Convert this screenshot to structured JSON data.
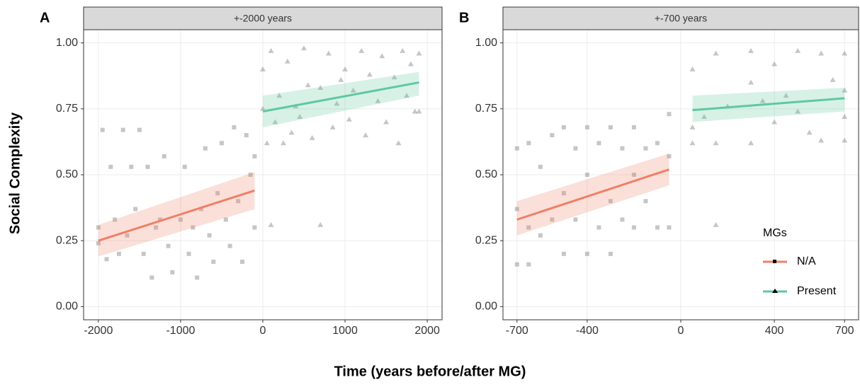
{
  "y_label": "Social Complexity",
  "x_label": "Time (years before/after MG)",
  "legend_title": "MGs",
  "chart_data": [
    {
      "type": "scatter",
      "panel_label": "A",
      "facet_title": "+-2000 years",
      "grid": true,
      "xlim": [
        -2180,
        2180
      ],
      "xticks": [
        -2000,
        -1000,
        0,
        1000,
        2000
      ],
      "ylim": [
        -0.05,
        1.05
      ],
      "yticks": [
        {
          "value": 0,
          "label": "0.00"
        },
        {
          "value": 0.25,
          "label": "0.25"
        },
        {
          "value": 0.5,
          "label": "0.50"
        },
        {
          "value": 0.75,
          "label": "0.75"
        },
        {
          "value": 1,
          "label": "1.00"
        }
      ],
      "series": [
        {
          "name": "N/A",
          "color": "#f07f67",
          "marker": "square",
          "point_color": "#808080",
          "x": [
            -2000,
            -2000,
            -1950,
            -1900,
            -1850,
            -1800,
            -1700,
            -1650,
            -1600,
            -1500,
            -1450,
            -1400,
            -1350,
            -1300,
            -1200,
            -1150,
            -1100,
            -1000,
            -950,
            -900,
            -800,
            -750,
            -700,
            -650,
            -600,
            -500,
            -450,
            -400,
            -350,
            -300,
            -250,
            -200,
            -150,
            -100,
            -100,
            -1750,
            -1550,
            -1250,
            -850,
            -550
          ],
          "values": [
            0.24,
            0.3,
            0.67,
            0.18,
            0.53,
            0.33,
            0.67,
            0.27,
            0.53,
            0.67,
            0.2,
            0.53,
            0.11,
            0.3,
            0.57,
            0.23,
            0.13,
            0.33,
            0.53,
            0.2,
            0.11,
            0.37,
            0.6,
            0.27,
            0.17,
            0.62,
            0.33,
            0.23,
            0.68,
            0.4,
            0.17,
            0.65,
            0.5,
            0.3,
            0.57,
            0.2,
            0.37,
            0.33,
            0.3,
            0.43
          ],
          "fit_x": [
            -2000,
            -100
          ],
          "fit": [
            0.25,
            0.44
          ],
          "band_lower": [
            0.19,
            0.37
          ],
          "band_upper": [
            0.31,
            0.51
          ]
        },
        {
          "name": "Present",
          "color": "#5fc8a0",
          "marker": "triangle",
          "point_color": "#808080",
          "x": [
            0,
            0,
            50,
            100,
            100,
            150,
            200,
            300,
            350,
            400,
            500,
            550,
            600,
            700,
            700,
            800,
            850,
            900,
            1000,
            1050,
            1100,
            1200,
            1250,
            1300,
            1400,
            1450,
            1500,
            1600,
            1650,
            1700,
            1750,
            1800,
            1850,
            1900,
            1900,
            250,
            450,
            950
          ],
          "values": [
            0.9,
            0.75,
            0.62,
            0.31,
            0.97,
            0.7,
            0.8,
            0.93,
            0.66,
            0.76,
            0.98,
            0.84,
            0.64,
            0.31,
            0.83,
            0.96,
            0.68,
            0.77,
            0.9,
            0.71,
            0.82,
            0.97,
            0.65,
            0.88,
            0.78,
            0.95,
            0.7,
            0.87,
            0.62,
            0.97,
            0.8,
            0.92,
            0.74,
            0.74,
            0.96,
            0.62,
            0.72,
            0.86
          ],
          "fit_x": [
            0,
            1900
          ],
          "fit": [
            0.74,
            0.85
          ],
          "band_lower": [
            0.68,
            0.8
          ],
          "band_upper": [
            0.8,
            0.89
          ]
        }
      ]
    },
    {
      "type": "scatter",
      "panel_label": "B",
      "facet_title": "+-700 years",
      "grid": true,
      "legend": "bottom-right",
      "xlim": [
        -760,
        760
      ],
      "xticks": [
        -700,
        -400,
        0,
        400,
        700
      ],
      "ylim": [
        -0.05,
        1.05
      ],
      "yticks": [
        {
          "value": 0,
          "label": "0.00"
        },
        {
          "value": 0.25,
          "label": "0.25"
        },
        {
          "value": 0.5,
          "label": "0.50"
        },
        {
          "value": 0.75,
          "label": "0.75"
        },
        {
          "value": 1,
          "label": "1.00"
        }
      ],
      "series": [
        {
          "name": "N/A",
          "color": "#f07f67",
          "marker": "square",
          "point_color": "#808080",
          "x": [
            -700,
            -700,
            -700,
            -650,
            -650,
            -650,
            -600,
            -600,
            -550,
            -550,
            -500,
            -500,
            -500,
            -450,
            -450,
            -400,
            -400,
            -400,
            -350,
            -350,
            -300,
            -300,
            -300,
            -250,
            -250,
            -200,
            -200,
            -200,
            -150,
            -150,
            -100,
            -100,
            -50,
            -50,
            -50
          ],
          "values": [
            0.16,
            0.37,
            0.6,
            0.16,
            0.3,
            0.62,
            0.27,
            0.53,
            0.33,
            0.65,
            0.2,
            0.43,
            0.68,
            0.33,
            0.6,
            0.2,
            0.5,
            0.68,
            0.3,
            0.62,
            0.2,
            0.4,
            0.68,
            0.33,
            0.6,
            0.3,
            0.5,
            0.68,
            0.4,
            0.6,
            0.3,
            0.62,
            0.3,
            0.57,
            0.73
          ],
          "fit_x": [
            -700,
            -50
          ],
          "fit": [
            0.33,
            0.52
          ],
          "band_lower": [
            0.27,
            0.46
          ],
          "band_upper": [
            0.4,
            0.58
          ]
        },
        {
          "name": "Present",
          "color": "#5fc8a0",
          "marker": "triangle",
          "point_color": "#808080",
          "x": [
            50,
            50,
            50,
            100,
            150,
            150,
            150,
            200,
            300,
            300,
            300,
            350,
            400,
            400,
            450,
            500,
            500,
            550,
            600,
            600,
            650,
            700,
            700,
            700,
            700
          ],
          "values": [
            0.9,
            0.62,
            0.68,
            0.72,
            0.96,
            0.62,
            0.31,
            0.76,
            0.97,
            0.62,
            0.85,
            0.78,
            0.7,
            0.92,
            0.8,
            0.97,
            0.74,
            0.66,
            0.96,
            0.63,
            0.86,
            0.96,
            0.63,
            0.82,
            0.72
          ],
          "fit_x": [
            50,
            700
          ],
          "fit": [
            0.745,
            0.79
          ],
          "band_lower": [
            0.7,
            0.74
          ],
          "band_upper": [
            0.8,
            0.83
          ]
        }
      ]
    }
  ]
}
